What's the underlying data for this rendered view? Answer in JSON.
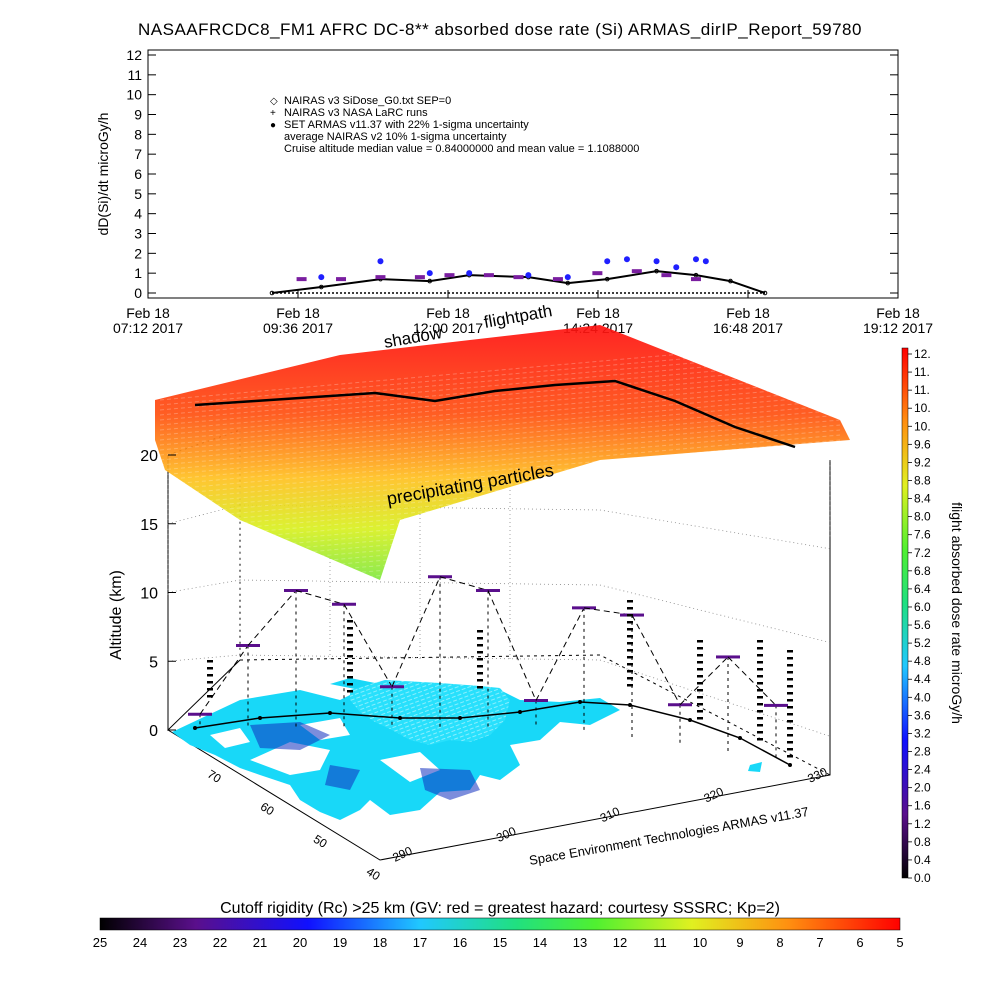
{
  "title": "NASAAFRCDC8_FM1 AFRC DC-8** absorbed dose rate (Si) ARMAS_dirIP_Report_59780",
  "chart_data": [
    {
      "type": "scatter",
      "ylabel": "dD(Si)/dt microGy/h",
      "ylim": [
        0,
        12
      ],
      "y_ticks": [
        "0",
        "1",
        "2",
        "3",
        "4",
        "5",
        "6",
        "7",
        "8",
        "9",
        "10",
        "11",
        "12"
      ],
      "x_ticks": [
        {
          "date": "Feb 18",
          "time": "07:12 2017"
        },
        {
          "date": "Feb 18",
          "time": "09:36 2017"
        },
        {
          "date": "Feb 18",
          "time": "12:00 2017"
        },
        {
          "date": "Feb 18",
          "time": "14:24 2017"
        },
        {
          "date": "Feb 18",
          "time": "16:48 2017"
        },
        {
          "date": "Feb 18",
          "time": "19:12 2017"
        }
      ],
      "legend": [
        {
          "symbol": "◇",
          "label": "NAIRAS v3 SiDose_G0.txt SEP=0"
        },
        {
          "symbol": "+",
          "label": "NAIRAS v3 NASA LaRC runs"
        },
        {
          "symbol": "●",
          "label": "SET ARMAS v11.37 with 22% 1-sigma uncertainty"
        },
        {
          "symbol": "",
          "label": "average NAIRAS v2 10% 1-sigma uncertainty"
        },
        {
          "symbol": "",
          "label": "Cruise altitude median value = 0.84000000 and mean value = 1.1088000"
        }
      ],
      "series": [
        {
          "color": "#000000",
          "x": [
            0,
            0.1,
            0.22,
            0.32,
            0.4,
            0.52,
            0.6,
            0.68,
            0.78,
            0.86,
            0.93,
            1
          ],
          "values": [
            0,
            0.3,
            0.7,
            0.6,
            0.9,
            0.8,
            0.5,
            0.7,
            1.1,
            0.9,
            0.6,
            0
          ]
        },
        {
          "color": "#2020ff",
          "x": [
            0.1,
            0.22,
            0.32,
            0.4,
            0.52,
            0.6,
            0.68,
            0.72,
            0.78,
            0.82,
            0.86,
            0.88
          ],
          "values": [
            0.8,
            1.6,
            1.0,
            1.0,
            0.9,
            0.8,
            1.6,
            1.7,
            1.6,
            1.3,
            1.7,
            1.6
          ]
        },
        {
          "color": "#7a1ea0",
          "x": [
            0.06,
            0.14,
            0.22,
            0.3,
            0.36,
            0.44,
            0.5,
            0.58,
            0.66,
            0.74,
            0.8,
            0.86
          ],
          "values": [
            0.7,
            0.7,
            0.8,
            0.8,
            0.9,
            0.9,
            0.8,
            0.7,
            1.0,
            1.1,
            0.9,
            0.7
          ]
        }
      ]
    },
    {
      "type": "scatter",
      "ylabel": "Altitude (km)",
      "z_ticks": [
        "0",
        "5",
        "10",
        "15",
        "20"
      ],
      "lat_ticks": [
        "70",
        "60",
        "50",
        "40"
      ],
      "lon_ticks": [
        "290",
        "300",
        "310",
        "320",
        "330"
      ],
      "annotations": [
        "flightpath",
        "shadow",
        "precipitating particles"
      ],
      "credit": "Space Environment Technologies ARMAS v11.37",
      "series": [
        {
          "name": "flightpath",
          "color": "#000000",
          "x": [
            0,
            0.1,
            0.2,
            0.3,
            0.4,
            0.5,
            0.6,
            0.7,
            0.8,
            0.9,
            1
          ],
          "values": [
            11.2,
            11.4,
            11.6,
            11.8,
            11.4,
            11.9,
            12.2,
            12.4,
            12.0,
            11.3,
            10.9
          ]
        },
        {
          "color": "#333333",
          "x": [
            0,
            0.08,
            0.16,
            0.24,
            0.32,
            0.4,
            0.48,
            0.56,
            0.64,
            0.72,
            0.8,
            0.88,
            0.96
          ],
          "values": [
            1,
            6,
            10,
            9,
            3,
            11,
            10,
            2,
            9,
            9,
            3,
            7,
            4
          ]
        }
      ]
    }
  ],
  "right_colorbar": {
    "label": "flight absorbed dose rate microGy/h",
    "ticks": [
      "12.",
      "11.",
      "11.",
      "10.",
      "10.",
      "9.6",
      "9.2",
      "8.8",
      "8.4",
      "8.0",
      "7.6",
      "7.2",
      "6.8",
      "6.4",
      "6.0",
      "5.6",
      "5.2",
      "4.8",
      "4.4",
      "4.0",
      "3.6",
      "3.2",
      "2.8",
      "2.4",
      "2.0",
      "1.6",
      "1.2",
      "0.8",
      "0.4",
      "0.0"
    ]
  },
  "bottom_colorbar": {
    "label": "Cutoff rigidity (Rc) >25 km (GV: red = greatest hazard; courtesy SSSRC; Kp=2)",
    "ticks": [
      "25",
      "24",
      "23",
      "22",
      "21",
      "20",
      "19",
      "18",
      "17",
      "16",
      "15",
      "14",
      "13",
      "12",
      "11",
      "10",
      "9",
      "8",
      "7",
      "6",
      "5"
    ]
  }
}
